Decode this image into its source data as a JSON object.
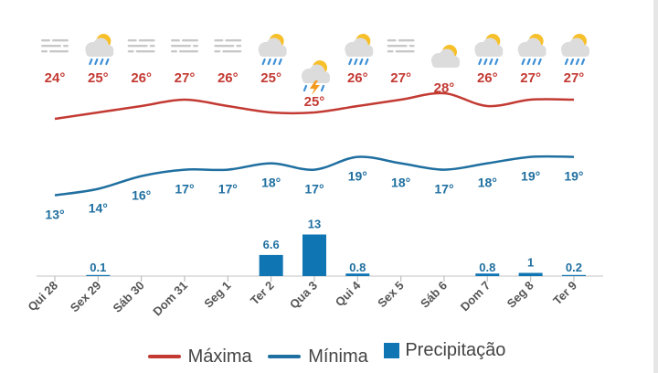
{
  "colors": {
    "max": "#c33a33",
    "min": "#1f6fa0",
    "precip": "#0f75b3"
  },
  "legend": {
    "max_label": "Máxima",
    "min_label": "Mínima",
    "precip_label": "Precipitação"
  },
  "chart_data": {
    "type": "line",
    "categories": [
      "Qui 28",
      "Sex 29",
      "Sáb 30",
      "Dom 31",
      "Seg 1",
      "Ter 2",
      "Qua 3",
      "Qui 4",
      "Sex 5",
      "Sáb 6",
      "Dom 7",
      "Seg 8",
      "Ter 9"
    ],
    "icons": [
      "fog-icon",
      "rain-cloud-sun-icon",
      "fog-icon",
      "fog-icon",
      "fog-icon",
      "rain-cloud-sun-icon",
      "thunderstorm-icon",
      "rain-cloud-sun-icon",
      "fog-icon",
      "cloudy-sun-icon",
      "rain-cloud-sun-icon",
      "rain-cloud-sun-icon",
      "rain-cloud-sun-icon"
    ],
    "series": [
      {
        "name": "Máxima",
        "values": [
          24,
          25,
          26,
          27,
          26,
          25,
          25,
          26,
          27,
          28,
          26,
          27,
          27
        ],
        "labels": [
          "24°",
          "25°",
          "26°",
          "27°",
          "26°",
          "25°",
          "25°",
          "26°",
          "27°",
          "28°",
          "26°",
          "27°",
          "27°"
        ]
      },
      {
        "name": "Mínima",
        "values": [
          13,
          14,
          16,
          17,
          17,
          18,
          17,
          19,
          18,
          17,
          18,
          19,
          19
        ],
        "labels": [
          "13°",
          "14°",
          "16°",
          "17°",
          "17°",
          "18°",
          "17°",
          "19°",
          "18°",
          "17°",
          "18°",
          "19°",
          "19°"
        ]
      },
      {
        "name": "Precipitação",
        "type": "bar",
        "values": [
          null,
          0.1,
          null,
          null,
          null,
          6.6,
          13,
          0.8,
          null,
          null,
          0.8,
          1,
          0.2
        ],
        "labels": [
          "",
          "0.1",
          "",
          "",
          "",
          "6.6",
          "13",
          "0.8",
          "",
          "",
          "0.8",
          "1",
          "0.2"
        ]
      }
    ]
  }
}
